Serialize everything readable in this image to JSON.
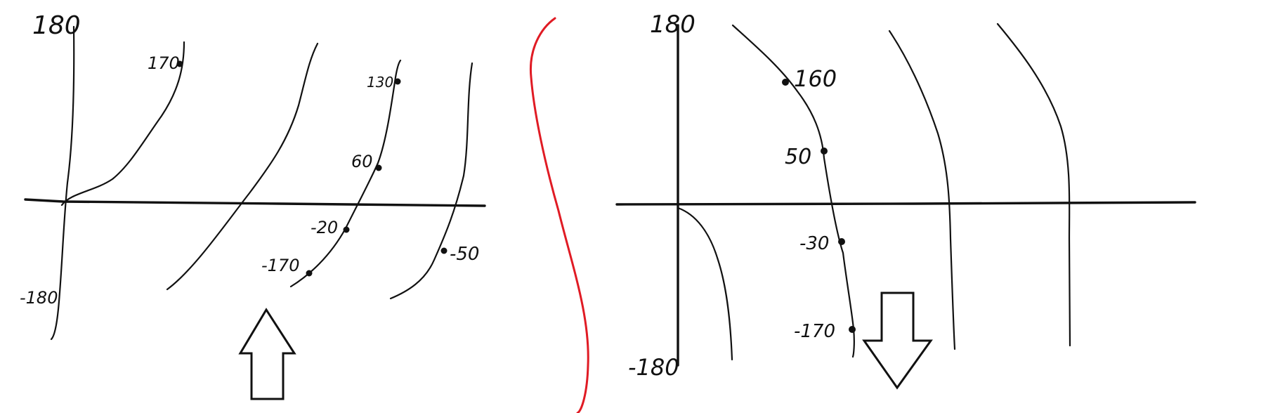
{
  "left_panel": {
    "axis_top_label": "180",
    "axis_bottom_label": "-180",
    "point_labels": [
      "170",
      "130",
      "60",
      "-20",
      "-170",
      "-50"
    ],
    "arrow_direction": "up"
  },
  "right_panel": {
    "axis_top_label": "180",
    "axis_bottom_label": "-180",
    "point_labels": [
      "160",
      "50",
      "-30",
      "-170"
    ],
    "arrow_direction": "down"
  },
  "colors": {
    "ink": "#111111",
    "divider": "#e01b24",
    "background": "#ffffff"
  }
}
